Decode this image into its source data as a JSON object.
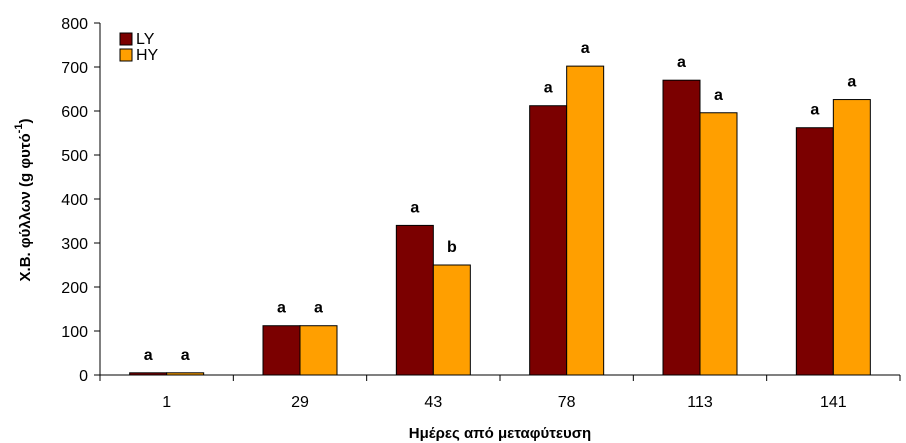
{
  "chart_data": {
    "type": "bar",
    "xlabel": "Ημέρες από μεταφύτευση",
    "ylabel": "Χ.Β. φύλλων (g φυτό",
    "ylabel_superscript": "-1",
    "ylabel_close": ")",
    "ylim": [
      0,
      800
    ],
    "yticks": [
      0,
      100,
      200,
      300,
      400,
      500,
      600,
      700,
      800
    ],
    "categories": [
      "1",
      "29",
      "43",
      "78",
      "113",
      "141"
    ],
    "legend_position": "top-left",
    "grid": false,
    "series": [
      {
        "name": "LY",
        "color": "#7b0000",
        "values": [
          5,
          112,
          340,
          612,
          670,
          562
        ],
        "significance": [
          "a",
          "a",
          "a",
          "a",
          "a",
          "a"
        ]
      },
      {
        "name": "HY",
        "color": "#ff9f00",
        "values": [
          5,
          112,
          250,
          702,
          596,
          626
        ],
        "significance": [
          "a",
          "a",
          "b",
          "a",
          "a",
          "a"
        ]
      }
    ]
  }
}
